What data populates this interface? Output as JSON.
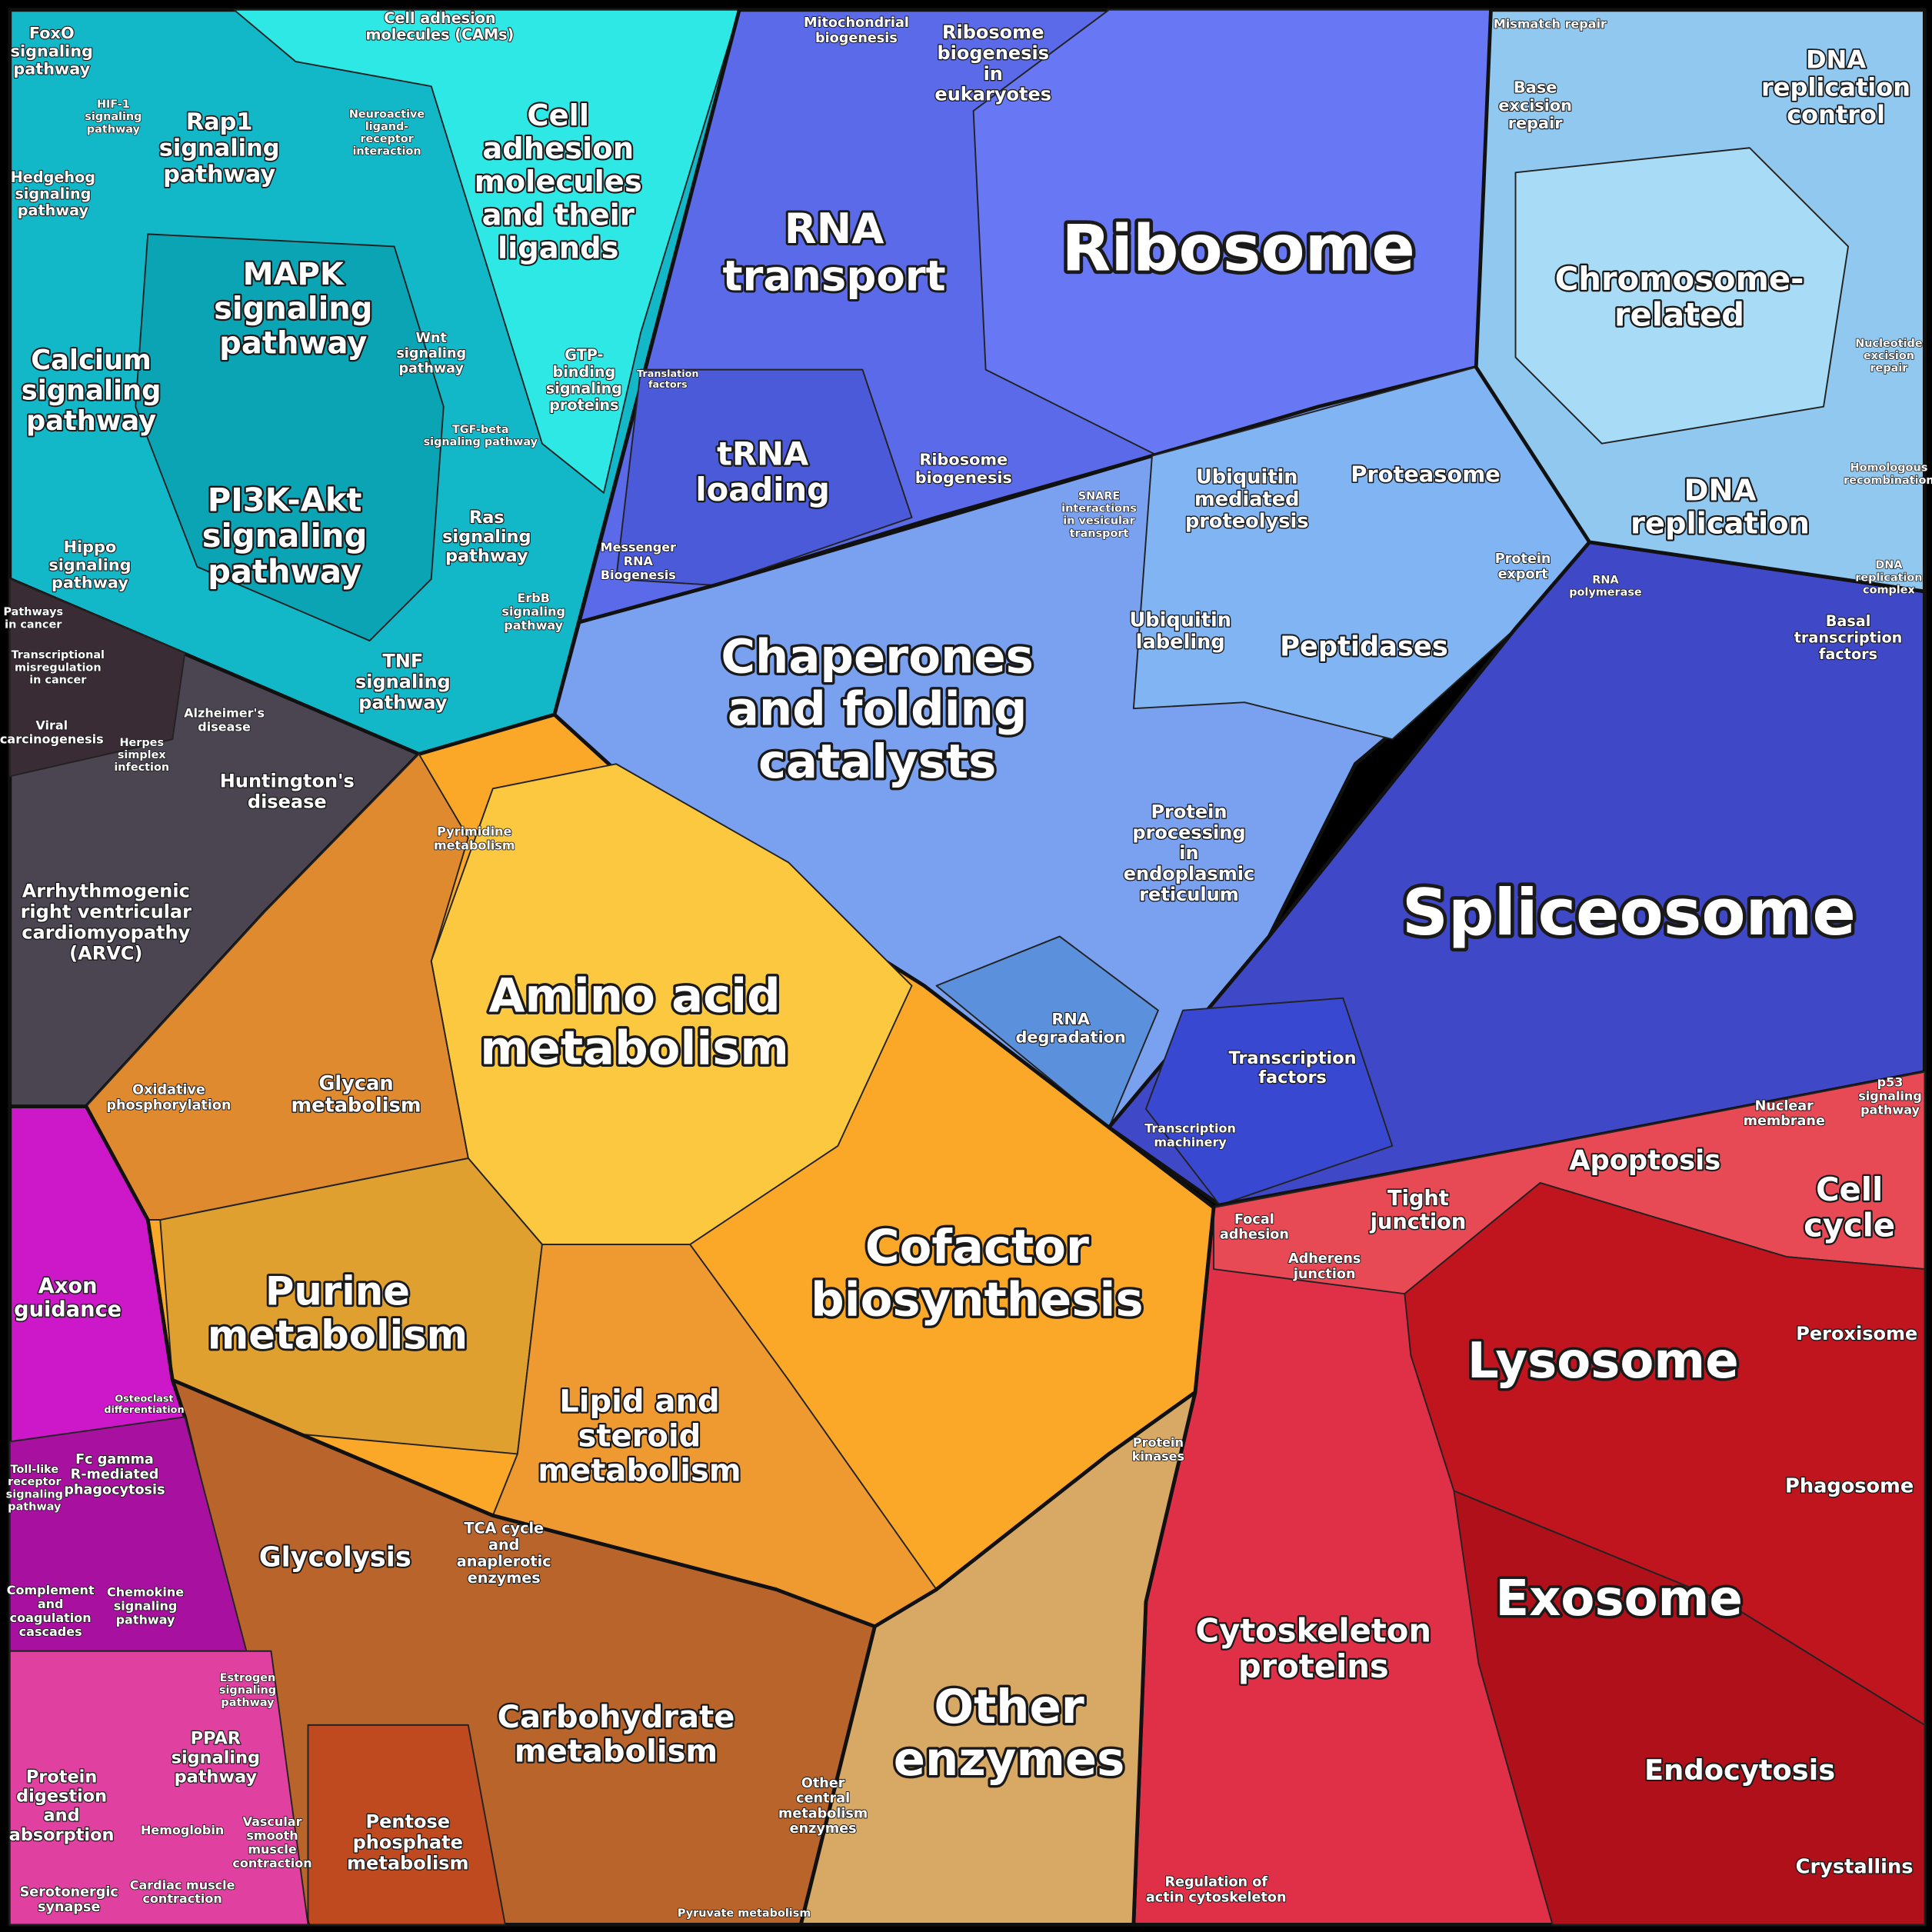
{
  "regions": [
    {
      "lines": [
        "Ribosome"
      ]
    },
    {
      "lines": [
        "RNA",
        "transport"
      ]
    },
    {
      "lines": [
        "tRNA",
        "loading"
      ]
    },
    {
      "lines": [
        "Ribosome",
        "biogenesis"
      ]
    },
    {
      "lines": [
        "Ribosome",
        "biogenesis",
        "in",
        "eukaryotes"
      ]
    },
    {
      "lines": [
        "Mitochondrial",
        "biogenesis"
      ]
    },
    {
      "lines": [
        "Messenger",
        "RNA",
        "Biogenesis"
      ]
    },
    {
      "lines": [
        "Chaperones",
        "and folding",
        "catalysts"
      ]
    },
    {
      "lines": [
        "Ubiquitin",
        "mediated",
        "proteolysis"
      ]
    },
    {
      "lines": [
        "Proteasome"
      ]
    },
    {
      "lines": [
        "Ubiquitin",
        "labeling"
      ]
    },
    {
      "lines": [
        "Peptidases"
      ]
    },
    {
      "lines": [
        "Protein",
        "export"
      ]
    },
    {
      "lines": [
        "SNARE",
        "interactions",
        "in vesicular",
        "transport"
      ]
    },
    {
      "lines": [
        "Protein",
        "processing",
        "in",
        "endoplasmic",
        "reticulum"
      ]
    },
    {
      "lines": [
        "RNA",
        "degradation"
      ]
    },
    {
      "lines": [
        "Spliceosome"
      ]
    },
    {
      "lines": [
        "Transcription",
        "factors"
      ]
    },
    {
      "lines": [
        "Transcription",
        "machinery"
      ]
    },
    {
      "lines": [
        "Basal",
        "transcription",
        "factors"
      ]
    },
    {
      "lines": [
        "RNA",
        "polymerase"
      ]
    },
    {
      "lines": [
        "DNA",
        "replication",
        "control"
      ]
    },
    {
      "lines": [
        "Chromosome-",
        "related"
      ]
    },
    {
      "lines": [
        "DNA",
        "replication"
      ]
    },
    {
      "lines": [
        "Base",
        "excision",
        "repair"
      ]
    },
    {
      "lines": [
        "Mismatch repair"
      ]
    },
    {
      "lines": [
        "Nucleotide",
        "excision",
        "repair"
      ]
    },
    {
      "lines": [
        "Homologous",
        "recombination"
      ]
    },
    {
      "lines": [
        "DNA",
        "replication",
        "complex"
      ]
    },
    {
      "lines": [
        "Cell",
        "adhesion",
        "molecules",
        "and their",
        "ligands"
      ]
    },
    {
      "lines": [
        "Cell adhesion",
        "molecules (CAMs)"
      ]
    },
    {
      "lines": [
        "Rap1",
        "signaling",
        "pathway"
      ]
    },
    {
      "lines": [
        "MAPK",
        "signaling",
        "pathway"
      ]
    },
    {
      "lines": [
        "Calcium",
        "signaling",
        "pathway"
      ]
    },
    {
      "lines": [
        "PI3K-Akt",
        "signaling",
        "pathway"
      ]
    },
    {
      "lines": [
        "FoxO",
        "signaling",
        "pathway"
      ]
    },
    {
      "lines": [
        "Hedgehog",
        "signaling",
        "pathway"
      ]
    },
    {
      "lines": [
        "Hippo",
        "signaling",
        "pathway"
      ]
    },
    {
      "lines": [
        "Wnt",
        "signaling",
        "pathway"
      ]
    },
    {
      "lines": [
        "TGF-beta",
        "signaling pathway"
      ]
    },
    {
      "lines": [
        "GTP-",
        "binding",
        "signaling",
        "proteins"
      ]
    },
    {
      "lines": [
        "Ras",
        "signaling",
        "pathway"
      ]
    },
    {
      "lines": [
        "TNF",
        "signaling",
        "pathway"
      ]
    },
    {
      "lines": [
        "ErbB",
        "signaling",
        "pathway"
      ]
    },
    {
      "lines": [
        "Neuroactive",
        "ligand-",
        "receptor",
        "interaction"
      ]
    },
    {
      "lines": [
        "Pathways",
        "in cancer"
      ]
    },
    {
      "lines": [
        "Transcriptional",
        "misregulation",
        "in cancer"
      ]
    },
    {
      "lines": [
        "Viral",
        "carcinogenesis"
      ]
    },
    {
      "lines": [
        "Alzheimer's",
        "disease"
      ]
    },
    {
      "lines": [
        "Herpes",
        "simplex",
        "infection"
      ]
    },
    {
      "lines": [
        "Huntington's",
        "disease"
      ]
    },
    {
      "lines": [
        "Arrhythmogenic",
        "right ventricular",
        "cardiomyopathy",
        "(ARVC)"
      ]
    },
    {
      "lines": [
        "Axon",
        "guidance"
      ]
    },
    {
      "lines": [
        "Fc gamma",
        "R-mediated",
        "phagocytosis"
      ]
    },
    {
      "lines": [
        "Toll-like",
        "receptor",
        "signaling",
        "pathway"
      ]
    },
    {
      "lines": [
        "Complement",
        "and",
        "coagulation",
        "cascades"
      ]
    },
    {
      "lines": [
        "Chemokine",
        "signaling",
        "pathway"
      ]
    },
    {
      "lines": [
        "PPAR",
        "signaling",
        "pathway"
      ]
    },
    {
      "lines": [
        "Protein",
        "digestion",
        "and",
        "absorption"
      ]
    },
    {
      "lines": [
        "Hemoglobin"
      ]
    },
    {
      "lines": [
        "Vascular",
        "smooth",
        "muscle",
        "contraction"
      ]
    },
    {
      "lines": [
        "Cardiac muscle",
        "contraction"
      ]
    },
    {
      "lines": [
        "Serotonergic",
        "synapse"
      ]
    },
    {
      "lines": [
        "Amino acid",
        "metabolism"
      ]
    },
    {
      "lines": [
        "Cofactor",
        "biosynthesis"
      ]
    },
    {
      "lines": [
        "Purine",
        "metabolism"
      ]
    },
    {
      "lines": [
        "Lipid and",
        "steroid",
        "metabolism"
      ]
    },
    {
      "lines": [
        "Glycan",
        "metabolism"
      ]
    },
    {
      "lines": [
        "Oxidative",
        "phosphorylation"
      ]
    },
    {
      "lines": [
        "Pyrimidine",
        "metabolism"
      ]
    },
    {
      "lines": [
        "Glycolysis"
      ]
    },
    {
      "lines": [
        "TCA cycle",
        "and",
        "anaplerotic",
        "enzymes"
      ]
    },
    {
      "lines": [
        "Carbohydrate",
        "metabolism"
      ]
    },
    {
      "lines": [
        "Pentose",
        "phosphate",
        "metabolism"
      ]
    },
    {
      "lines": [
        "Other",
        "central",
        "metabolism",
        "enzymes"
      ]
    },
    {
      "lines": [
        "Pyruvate metabolism"
      ]
    },
    {
      "lines": [
        "Other",
        "enzymes"
      ]
    },
    {
      "lines": [
        "Protein",
        "kinases"
      ]
    },
    {
      "lines": [
        "Apoptosis"
      ]
    },
    {
      "lines": [
        "Tight",
        "junction"
      ]
    },
    {
      "lines": [
        "Focal",
        "adhesion"
      ]
    },
    {
      "lines": [
        "Adherens",
        "junction"
      ]
    },
    {
      "lines": [
        "Nuclear",
        "membrane"
      ]
    },
    {
      "lines": [
        "Cell",
        "cycle"
      ]
    },
    {
      "lines": [
        "p53",
        "signaling",
        "pathway"
      ]
    },
    {
      "lines": [
        "Lysosome"
      ]
    },
    {
      "lines": [
        "Peroxisome"
      ]
    },
    {
      "lines": [
        "Phagosome"
      ]
    },
    {
      "lines": [
        "Exosome"
      ]
    },
    {
      "lines": [
        "Cytoskeleton",
        "proteins"
      ]
    },
    {
      "lines": [
        "Endocytosis"
      ]
    },
    {
      "lines": [
        "Crystallins"
      ]
    },
    {
      "lines": [
        "Regulation of",
        "actin cytoskeleton"
      ]
    },
    {
      "lines": [
        "Estrogen",
        "signaling",
        "pathway"
      ]
    },
    {
      "lines": [
        "Osteoclast",
        "differentiation"
      ]
    },
    {
      "lines": [
        "HIF-1",
        "signaling",
        "pathway"
      ]
    },
    {
      "lines": [
        "Translation",
        "factors"
      ]
    }
  ]
}
